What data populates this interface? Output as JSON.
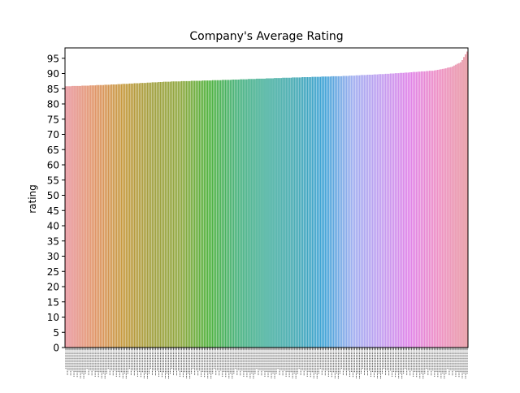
{
  "chart_data": {
    "type": "bar",
    "title": "Company's Average Rating",
    "xlabel": "",
    "ylabel": "rating",
    "ylim": [
      0,
      98.4
    ],
    "yticks": [
      0,
      5,
      10,
      15,
      20,
      25,
      30,
      35,
      40,
      45,
      50,
      55,
      60,
      65,
      70,
      75,
      80,
      85,
      90,
      95
    ],
    "grid": false,
    "legend": "none",
    "bar_count": 247,
    "value_profile": {
      "anchors_x": [
        0,
        0.05,
        0.12,
        0.25,
        0.4,
        0.55,
        0.7,
        0.8,
        0.86,
        0.92,
        0.96,
        0.985,
        1
      ],
      "anchors_y": [
        85.8,
        86.0,
        86.4,
        87.3,
        87.9,
        88.6,
        89.2,
        89.9,
        90.4,
        91.0,
        92.1,
        93.8,
        97.2
      ]
    },
    "palette": [
      "#e8919a",
      "#e09263",
      "#c5993d",
      "#a1a03f",
      "#8fa83f",
      "#4fb23d",
      "#43b07a",
      "#3fad9a",
      "#41a8b2",
      "#3fa3d6",
      "#9faef0",
      "#c39ef0",
      "#e083e8",
      "#ed8cc2",
      "#e6919c"
    ],
    "category_label_note": "x tick labels are too small to read"
  }
}
